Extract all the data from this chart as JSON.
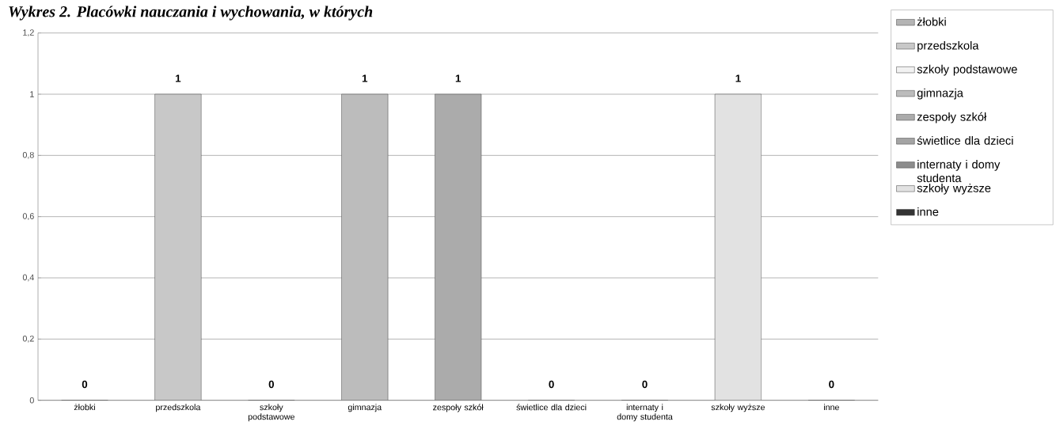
{
  "chart_data": {
    "type": "bar",
    "title": "Wykres 2. Placówki nauczania i wychowania, w których",
    "categories": [
      "żłobki",
      "przedszkola",
      "szkoły podstawowe",
      "gimnazja",
      "zespoły szkół",
      "świetlice dla dzieci",
      "internaty i domy studenta",
      "szkoły wyższe",
      "inne"
    ],
    "series": [
      {
        "name": "żłobki",
        "color": "#b4b4b4",
        "values": [
          0,
          null,
          null,
          null,
          null,
          null,
          null,
          null,
          null
        ]
      },
      {
        "name": "przedszkola",
        "color": "#c8c8c8",
        "values": [
          null,
          1,
          null,
          null,
          null,
          null,
          null,
          null,
          null
        ]
      },
      {
        "name": "szkoły podstawowe",
        "color": "#f2f2f2",
        "values": [
          null,
          null,
          0,
          null,
          null,
          null,
          null,
          null,
          null
        ]
      },
      {
        "name": "gimnazja",
        "color": "#bcbcbc",
        "values": [
          null,
          null,
          null,
          1,
          null,
          null,
          null,
          null,
          null
        ]
      },
      {
        "name": "zespoły szkół",
        "color": "#ababab",
        "values": [
          null,
          null,
          null,
          null,
          1,
          null,
          null,
          null,
          null
        ]
      },
      {
        "name": "świetlice dla dzieci",
        "color": "#a4a4a4",
        "values": [
          null,
          null,
          null,
          null,
          null,
          0,
          null,
          null,
          null
        ]
      },
      {
        "name": "internaty i domy studenta",
        "color": "#8c8c8c",
        "values": [
          null,
          null,
          null,
          null,
          null,
          null,
          0,
          null,
          null
        ]
      },
      {
        "name": "szkoły wyższe",
        "color": "#e2e2e2",
        "values": [
          null,
          null,
          null,
          null,
          null,
          null,
          null,
          1,
          null
        ]
      },
      {
        "name": "inne",
        "color": "#333333",
        "values": [
          null,
          null,
          null,
          null,
          null,
          null,
          null,
          null,
          0
        ]
      }
    ],
    "ylim": [
      0,
      1.2
    ],
    "yticks": [
      0,
      {
        "value": 0.2,
        "label": "0,2"
      },
      {
        "value": 0.4,
        "label": "0,4"
      },
      {
        "value": 0.6,
        "label": "0,6"
      },
      {
        "value": 0.8,
        "label": "0,8"
      },
      1,
      {
        "value": 1.2,
        "label": "1,2"
      }
    ],
    "grid": "y",
    "legend": "right",
    "data_labels": true
  }
}
